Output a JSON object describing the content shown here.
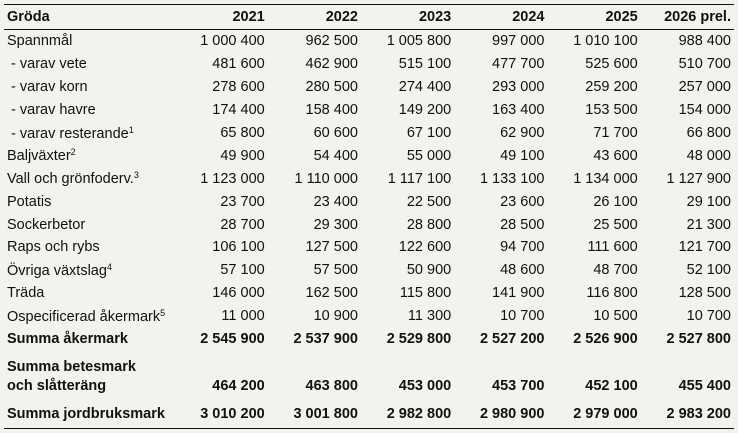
{
  "columns": [
    "Gröda",
    "2021",
    "2022",
    "2023",
    "2024",
    "2025",
    "2026 prel."
  ],
  "rows": [
    {
      "label": "Spannmål",
      "note": "",
      "values": [
        "1 000 400",
        "962 500",
        "1 005 800",
        "997 000",
        "1 010 100",
        "988 400"
      ]
    },
    {
      "label": " - varav vete",
      "note": "",
      "values": [
        "481 600",
        "462 900",
        "515 100",
        "477 700",
        "525 600",
        "510 700"
      ]
    },
    {
      "label": " - varav korn",
      "note": "",
      "values": [
        "278 600",
        "280 500",
        "274 400",
        "293 000",
        "259 200",
        "257 000"
      ]
    },
    {
      "label": " - varav havre",
      "note": "",
      "values": [
        "174 400",
        "158 400",
        "149 200",
        "163 400",
        "153 500",
        "154 000"
      ]
    },
    {
      "label": " - varav resterande",
      "note": "1",
      "values": [
        "65 800",
        "60 600",
        "67 100",
        "62 900",
        "71 700",
        "66 800"
      ]
    },
    {
      "label": "Baljväxter",
      "note": "2",
      "values": [
        "49 900",
        "54 400",
        "55 000",
        "49 100",
        "43 600",
        "48 000"
      ]
    },
    {
      "label": "Vall och grönfoderv.",
      "note": "3",
      "values": [
        "1 123 000",
        "1 110 000",
        "1 117 100",
        "1 133 100",
        "1 134 000",
        "1 127 900"
      ]
    },
    {
      "label": "Potatis",
      "note": "",
      "values": [
        "23 700",
        "23 400",
        "22 500",
        "23 600",
        "26 100",
        "29 100"
      ]
    },
    {
      "label": "Sockerbetor",
      "note": "",
      "values": [
        "28 700",
        "29 300",
        "28 800",
        "28 500",
        "25 500",
        "21 300"
      ]
    },
    {
      "label": "Raps och rybs",
      "note": "",
      "values": [
        "106 100",
        "127 500",
        "122 600",
        "94 700",
        "111 600",
        "121 700"
      ]
    },
    {
      "label": "Övriga växtslag",
      "note": "4",
      "values": [
        "57 100",
        "57 500",
        "50 900",
        "48 600",
        "48 700",
        "52 100"
      ]
    },
    {
      "label": "Träda",
      "note": "",
      "values": [
        "146 000",
        "162 500",
        "115 800",
        "141 900",
        "116 800",
        "128 500"
      ]
    },
    {
      "label": "Ospecificerad åkermark",
      "note": "5",
      "values": [
        "11 000",
        "10 900",
        "11 300",
        "10 700",
        "10 500",
        "10 700"
      ]
    }
  ],
  "totals": [
    {
      "label_line1": "Summa åkermark",
      "label_line2": "",
      "values": [
        "2 545 900",
        "2 537 900",
        "2 529 800",
        "2 527 200",
        "2 526 900",
        "2 527 800"
      ]
    },
    {
      "label_line1": "Summa betesmark",
      "label_line2": "och slåtteräng",
      "values": [
        "464 200",
        "463 800",
        "453 000",
        "453 700",
        "452 100",
        "455 400"
      ]
    },
    {
      "label_line1": "Summa jordbruksmark",
      "label_line2": "",
      "values": [
        "3 010 200",
        "3 001 800",
        "2 982 800",
        "2 980 900",
        "2 979 000",
        "2 983 200"
      ]
    }
  ]
}
